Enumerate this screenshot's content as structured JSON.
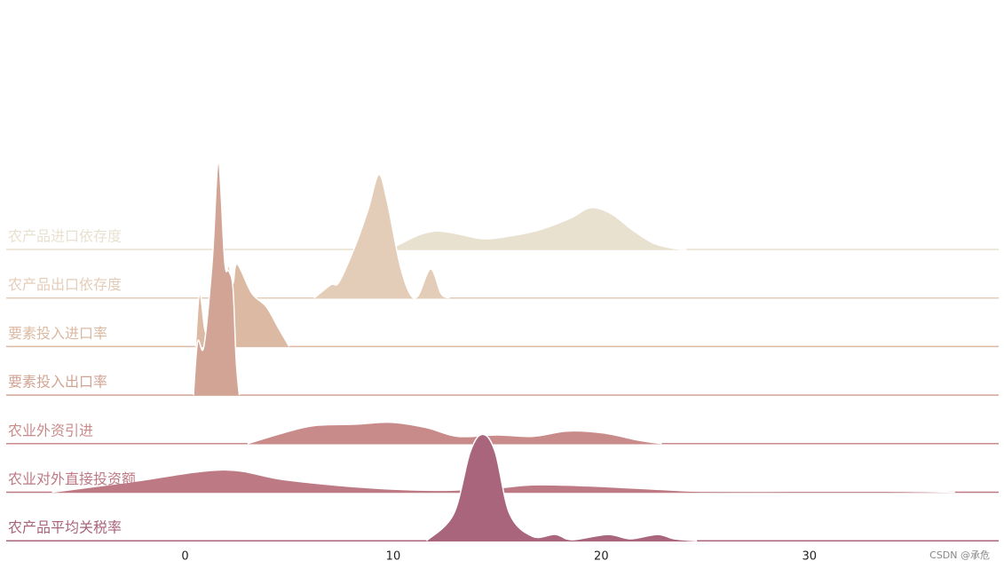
{
  "chart_data": {
    "type": "ridgeline",
    "xlim": [
      -8.6,
      39.1
    ],
    "xticks": [
      0,
      10,
      20,
      30
    ],
    "series": [
      {
        "name": "农产品进口依存度",
        "color": "#e8e1cf",
        "x": [
          9.8,
          10.5,
          11.3,
          12.1,
          13,
          14.3,
          15.5,
          17,
          18.5,
          19.5,
          20.5,
          21.5,
          22.5,
          23.5,
          24.1
        ],
        "values": [
          0,
          0.15,
          0.31,
          0.38,
          0.33,
          0.22,
          0.27,
          0.4,
          0.64,
          0.86,
          0.73,
          0.4,
          0.13,
          0.02,
          0
        ]
      },
      {
        "name": "农产品出口依存度",
        "color": "#e4cdb8",
        "x": [
          6.2,
          7.0,
          7.4,
          8.2,
          8.8,
          9.3,
          9.7,
          10.3,
          10.8,
          11.2,
          11.8,
          12.3,
          12.7
        ],
        "values": [
          0,
          0.27,
          0.33,
          1.1,
          1.83,
          2.54,
          2.01,
          0.73,
          0.09,
          0.05,
          0.6,
          0.09,
          0
        ]
      },
      {
        "name": "要素投入进口率",
        "color": "#dbb9a2",
        "x": [
          0.5,
          0.7,
          1.0,
          1.4,
          1.9,
          2.1,
          2.3,
          2.5,
          3.2,
          3.9,
          4.5,
          5.0
        ],
        "values": [
          0,
          1.1,
          0.27,
          0.9,
          1.4,
          1.66,
          1.3,
          1.7,
          1.1,
          0.82,
          0.37,
          0
        ]
      },
      {
        "name": "要素投入出口率",
        "color": "#d2a495",
        "x": [
          0.4,
          0.6,
          0.9,
          1.3,
          1.6,
          1.9,
          2.1,
          2.3,
          2.45,
          2.6
        ],
        "values": [
          0,
          1.1,
          1.0,
          2.74,
          4.77,
          2.74,
          2.56,
          2.2,
          0.73,
          0
        ]
      },
      {
        "name": "农业外资引进",
        "color": "#c98b8a",
        "x": [
          3.0,
          4.7,
          6.2,
          8.2,
          9.9,
          11.6,
          13.1,
          15,
          16.7,
          18.4,
          20.1,
          21.8,
          22.9
        ],
        "values": [
          0,
          0.22,
          0.37,
          0.4,
          0.44,
          0.33,
          0.15,
          0.18,
          0.15,
          0.26,
          0.22,
          0.07,
          0
        ]
      },
      {
        "name": "农业对外直接投资额",
        "color": "#bd7a84",
        "x": [
          -6.4,
          -2.5,
          1.8,
          4.7,
          8.2,
          11.6,
          14.6,
          16.7,
          19.3,
          23.1,
          24.8,
          29.5,
          33.8,
          37
        ],
        "values": [
          0,
          0.22,
          0.46,
          0.26,
          0.11,
          0.04,
          0.07,
          0.15,
          0.13,
          0.05,
          0.02,
          0.02,
          0.02,
          0
        ]
      },
      {
        "name": "农产品平均关税率",
        "color": "#a8657b",
        "x": [
          11.6,
          12.9,
          13.7,
          14.3,
          14.9,
          15.6,
          16.7,
          17.8,
          18.6,
          20.3,
          21.4,
          22.7,
          23.5,
          24.6
        ],
        "values": [
          0,
          0.55,
          1.83,
          2.19,
          1.83,
          0.55,
          0.09,
          0.13,
          0.02,
          0.13,
          0.04,
          0.13,
          0.04,
          0
        ]
      }
    ]
  },
  "watermark": "CSDN @承危"
}
